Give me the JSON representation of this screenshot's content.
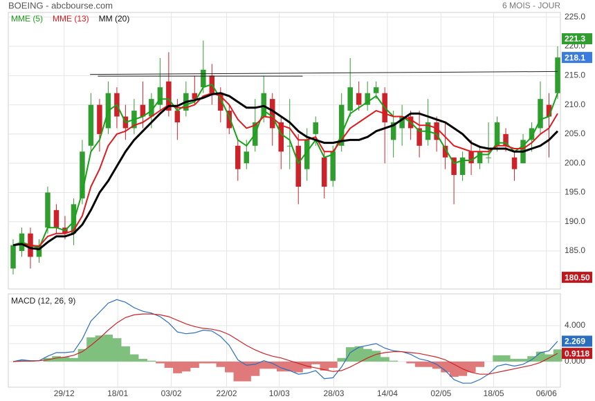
{
  "chart_data": {
    "type": "candlestick",
    "title": "BOEING - abcbourse.com",
    "subtitle": "6 MOIS - JOUR",
    "candles": [
      [
        182,
        187,
        181,
        186
      ],
      [
        185,
        189,
        184,
        188
      ],
      [
        188,
        189,
        182,
        184
      ],
      [
        184,
        187,
        183,
        186
      ],
      [
        189,
        196,
        188,
        195
      ],
      [
        192,
        193,
        188,
        189
      ],
      [
        189,
        191,
        187,
        188
      ],
      [
        188,
        194,
        186,
        193
      ],
      [
        194,
        204,
        193,
        202
      ],
      [
        203,
        212,
        202,
        210
      ],
      [
        210,
        211,
        202,
        205
      ],
      [
        206,
        214,
        205,
        212
      ],
      [
        212,
        213,
        206,
        208
      ],
      [
        208,
        210,
        204,
        206
      ],
      [
        206,
        211,
        205,
        209
      ],
      [
        210,
        214,
        206,
        208
      ],
      [
        208,
        212,
        206,
        211
      ],
      [
        210,
        218,
        209,
        213
      ],
      [
        214,
        219,
        208,
        209
      ],
      [
        209,
        211,
        204,
        207
      ],
      [
        209,
        214,
        208,
        212
      ],
      [
        212,
        215,
        210,
        211
      ],
      [
        213,
        221,
        212,
        216
      ],
      [
        215,
        217,
        210,
        212
      ],
      [
        212,
        213,
        207,
        209
      ],
      [
        209,
        210,
        205,
        206
      ],
      [
        203,
        204,
        197,
        199
      ],
      [
        200,
        204,
        199,
        202
      ],
      [
        203,
        211,
        202,
        207
      ],
      [
        208,
        215,
        207,
        212
      ],
      [
        211,
        212,
        203,
        206
      ],
      [
        207,
        208,
        199,
        202
      ],
      [
        203,
        211,
        199,
        203
      ],
      [
        203,
        205,
        193,
        196
      ],
      [
        199,
        206,
        197,
        204
      ],
      [
        205,
        208,
        203,
        207
      ],
      [
        201,
        202,
        194,
        196
      ],
      [
        197,
        203,
        196,
        202
      ],
      [
        203,
        212,
        202,
        210
      ],
      [
        209,
        218,
        208,
        213
      ],
      [
        212,
        214,
        209,
        210
      ],
      [
        210,
        214,
        209,
        212
      ],
      [
        212,
        214,
        211,
        213
      ],
      [
        212,
        213,
        200,
        207
      ],
      [
        204,
        209,
        201,
        207
      ],
      [
        206,
        210,
        203,
        208
      ],
      [
        208,
        209,
        204,
        206
      ],
      [
        206,
        209,
        201,
        203
      ],
      [
        204,
        211,
        203,
        207
      ],
      [
        207,
        208,
        202,
        204
      ],
      [
        203,
        207,
        199,
        201
      ],
      [
        201,
        201,
        193,
        198
      ],
      [
        198,
        202,
        197,
        201
      ],
      [
        202,
        204,
        198,
        200
      ],
      [
        200,
        203,
        199,
        202
      ],
      [
        201,
        207,
        200,
        201
      ],
      [
        203,
        208,
        202,
        207
      ],
      [
        205,
        206,
        202,
        203
      ],
      [
        201,
        202,
        197,
        199
      ],
      [
        200,
        205,
        200,
        204
      ],
      [
        204,
        207,
        202,
        206
      ],
      [
        206,
        214,
        205,
        211
      ],
      [
        210,
        212,
        201,
        208
      ],
      [
        212,
        220,
        211,
        218.1
      ]
    ],
    "up_color": "#2f9e2f",
    "down_color": "#cc2229",
    "series": [
      {
        "name": "MME (5)",
        "color": "#17a317",
        "values": [
          186,
          186.5,
          186,
          185.5,
          189,
          189,
          188.5,
          190,
          195,
          202,
          204,
          209,
          210,
          207,
          207.5,
          208,
          209,
          211,
          211,
          209,
          210,
          210.5,
          213,
          213.5,
          211,
          208,
          204,
          203,
          205,
          209,
          208,
          205,
          204,
          200,
          202,
          204,
          201,
          201.5,
          205,
          208.5,
          209.5,
          210.5,
          211.5,
          209.5,
          208,
          208,
          207,
          205.5,
          205.5,
          205,
          202.5,
          200,
          200.5,
          200.5,
          201.5,
          201.5,
          203.5,
          203.5,
          202,
          203,
          204.5,
          207.5,
          208,
          212
        ]
      },
      {
        "name": "MME (13)",
        "color": "#e0191f",
        "values": [
          186,
          186.2,
          186,
          185.8,
          187.5,
          188,
          188,
          188.5,
          191,
          196,
          199,
          203,
          205,
          205.5,
          206.5,
          207,
          208,
          209,
          210,
          209.5,
          209.5,
          210,
          211.5,
          212,
          211.5,
          210,
          207.5,
          206,
          206.5,
          208,
          207.8,
          206.5,
          206,
          204,
          204,
          204.5,
          202,
          202,
          204,
          206,
          207,
          208,
          209,
          208.5,
          208,
          208,
          207.5,
          206.5,
          206.5,
          206,
          204.5,
          203,
          202.5,
          202,
          202,
          202,
          203,
          203,
          202.5,
          202.5,
          203.5,
          205,
          206,
          208.5
        ]
      },
      {
        "name": "MM (20)",
        "color": "#000000",
        "values": [
          186,
          186.2,
          185.5,
          185.3,
          186.5,
          187.5,
          187.5,
          188,
          189.5,
          192,
          195,
          197,
          199.5,
          202,
          204,
          205.5,
          207,
          208.5,
          209.8,
          209.8,
          210.5,
          210.8,
          211.2,
          211.8,
          212,
          211.5,
          210.5,
          209.5,
          209.5,
          209.8,
          209,
          208,
          207,
          205.5,
          204.5,
          204,
          203.5,
          203.5,
          203.8,
          204,
          204,
          204.5,
          205.5,
          206,
          206.5,
          207.5,
          208.5,
          208.5,
          208,
          207.5,
          207,
          206,
          205,
          203.5,
          202.8,
          202.5,
          202.5,
          202.5,
          202,
          202,
          202.5,
          203,
          204,
          205.5
        ]
      }
    ],
    "trendlines": [
      {
        "x": [
          8.9,
          63
        ],
        "y": [
          215.2,
          215.7
        ]
      },
      {
        "x": [
          9.8,
          33.5
        ],
        "y": [
          214.9,
          214.9
        ]
      }
    ],
    "ylim": [
      178.5,
      225.8
    ],
    "yticks": [
      {
        "value": 185,
        "label": "185.0"
      },
      {
        "value": 190,
        "label": "190.0"
      },
      {
        "value": 195,
        "label": "195.0"
      },
      {
        "value": 200,
        "label": "200.0"
      },
      {
        "value": 205,
        "label": "205.0"
      },
      {
        "value": 210,
        "label": "210.0"
      },
      {
        "value": 215,
        "label": "215.0"
      },
      {
        "value": 220,
        "label": "220.0"
      },
      {
        "value": 225,
        "label": "225.0"
      }
    ],
    "xticks": [
      {
        "value": 5.9,
        "label": "29/12"
      },
      {
        "value": 12.1,
        "label": "18/01"
      },
      {
        "value": 18.3,
        "label": "03/02"
      },
      {
        "value": 24.7,
        "label": "22/02"
      },
      {
        "value": 30.8,
        "label": "10/03"
      },
      {
        "value": 37.1,
        "label": "28/03"
      },
      {
        "value": 43.3,
        "label": "14/04"
      },
      {
        "value": 49.5,
        "label": "02/05"
      },
      {
        "value": 55.6,
        "label": "18/05"
      },
      {
        "value": 61.7,
        "label": "06/06"
      }
    ],
    "badges": [
      {
        "value": 221.3,
        "color": "#2f9e2f"
      },
      {
        "value": 218.1,
        "color": "#3a7be0"
      },
      {
        "value": 180.5,
        "label": "180.50",
        "color": "#c0161c"
      }
    ],
    "grid": true,
    "macd": {
      "title": "MACD (12, 26, 9)",
      "ylim": [
        -2.85,
        7.54
      ],
      "yticks": [
        {
          "value": 0,
          "label": "0.000"
        },
        {
          "value": 2,
          "label": "2.000"
        },
        {
          "value": 4,
          "label": "4.000"
        }
      ],
      "series": [
        {
          "color": "#2a6ebd",
          "values": [
            0,
            0.2,
            0.1,
            0.1,
            0.6,
            1.0,
            1.0,
            1.1,
            2.5,
            4.5,
            5.5,
            6.5,
            6.9,
            6.6,
            6.0,
            5.6,
            5.4,
            5.0,
            4.3,
            3.3,
            3.1,
            3.2,
            3.5,
            3.4,
            2.8,
            1.8,
            0.2,
            -0.4,
            -0.3,
            0.1,
            -0.2,
            -0.7,
            -1.0,
            -1.4,
            -1.3,
            -1.0,
            -1.9,
            -1.8,
            -0.6,
            1.0,
            1.6,
            1.8,
            2.0,
            1.5,
            1.2,
            1.1,
            0.8,
            0.3,
            0.1,
            -0.3,
            -1.0,
            -2.0,
            -2.4,
            -2.4,
            -2.0,
            -1.4,
            -0.5,
            -0.3,
            -0.5,
            -0.3,
            0.2,
            1.0,
            1.2,
            2.269
          ]
        },
        {
          "color": "#cc2229",
          "values": [
            0,
            0.05,
            0.05,
            0.1,
            0.2,
            0.4,
            0.5,
            0.7,
            1.1,
            1.8,
            2.6,
            3.5,
            4.3,
            4.9,
            5.2,
            5.3,
            5.3,
            5.2,
            5.0,
            4.6,
            4.2,
            3.9,
            3.7,
            3.6,
            3.4,
            3.0,
            2.4,
            1.8,
            1.3,
            0.9,
            0.6,
            0.4,
            0.1,
            -0.2,
            -0.5,
            -0.7,
            -0.9,
            -1.1,
            -1.0,
            -0.6,
            -0.1,
            0.4,
            0.8,
            1.0,
            1.1,
            1.1,
            1.0,
            0.9,
            0.7,
            0.5,
            0.2,
            -0.3,
            -0.8,
            -1.2,
            -1.4,
            -1.4,
            -1.2,
            -1.0,
            -0.8,
            -0.6,
            -0.4,
            -0.1,
            0.4,
            0.9118
          ]
        }
      ],
      "histogram": {
        "up_color": "#7fc07f",
        "down_color": "#e07a7a",
        "values": [
          0,
          0.15,
          0.05,
          0,
          0.4,
          0.6,
          0.5,
          0.4,
          1.4,
          2.7,
          2.9,
          3.0,
          2.6,
          1.7,
          0.8,
          0.3,
          0.1,
          -0.2,
          -0.7,
          -1.3,
          -1.1,
          -0.7,
          -0.2,
          -0.2,
          -0.6,
          -1.2,
          -2.2,
          -2.2,
          -1.6,
          -0.8,
          -0.8,
          -1.1,
          -1.1,
          -1.2,
          -0.8,
          -0.3,
          -1.0,
          -0.7,
          0.4,
          1.6,
          1.7,
          1.4,
          1.2,
          0.5,
          0.1,
          0,
          -0.2,
          -0.6,
          -0.6,
          -0.8,
          -1.2,
          -1.7,
          -1.6,
          -1.2,
          -0.6,
          0,
          0.7,
          0.7,
          0.3,
          0.3,
          0.6,
          1.1,
          0.8,
          1.36
        ]
      },
      "badges": [
        {
          "value": 2.269,
          "color": "#2a6ebd"
        },
        {
          "value": 0.9118,
          "color": "#c0161c"
        }
      ]
    }
  }
}
